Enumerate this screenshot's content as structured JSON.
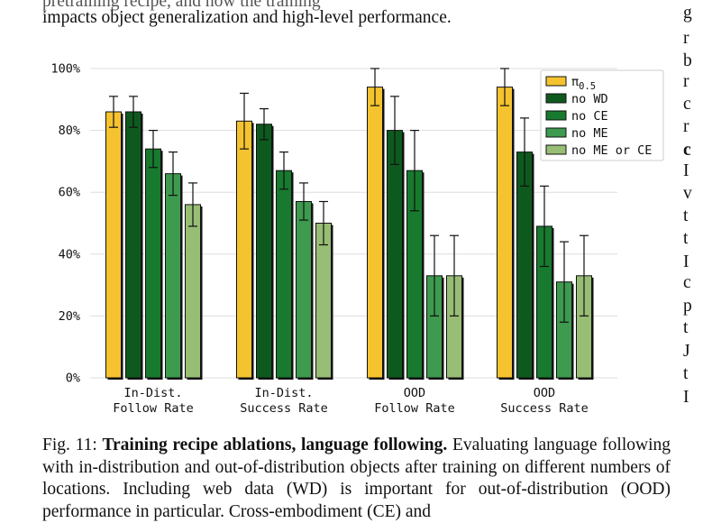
{
  "top_text": {
    "line1_tail": "pretraining recipe, and how the training",
    "line2": "impacts object generalization and high-level performance."
  },
  "right_column": {
    "letters": [
      "g",
      "r",
      "b",
      "r",
      "c",
      "r",
      "c",
      "I",
      "v",
      "t",
      "t",
      "I",
      "c",
      "p",
      "t",
      "J",
      "t",
      "I"
    ]
  },
  "caption": {
    "label": "Fig. 11:",
    "bold_title": "Training recipe ablations, language following.",
    "body": "Evaluating language following with in-distribution and out-of-distribution objects after training on different numbers of locations. Including web data (WD) is important for out-of-distribution (OOD) performance in particular. Cross-embodiment (CE) and"
  },
  "chart_data": {
    "type": "bar",
    "categories": [
      [
        "In-Dist.",
        "Follow Rate"
      ],
      [
        "In-Dist.",
        "Success Rate"
      ],
      [
        "OOD",
        "Follow Rate"
      ],
      [
        "OOD",
        "Success Rate"
      ]
    ],
    "ylim": [
      0,
      100
    ],
    "yticks": [
      "0%",
      "20%",
      "40%",
      "60%",
      "80%",
      "100%"
    ],
    "ytick_values": [
      0,
      20,
      40,
      60,
      80,
      100
    ],
    "grid": true,
    "legend_position": "top-right",
    "series": [
      {
        "name": "π0.5",
        "name_main": "π",
        "name_sub": "0.5",
        "color": "#f5c330",
        "values": [
          86,
          83,
          94,
          94
        ],
        "err_low": [
          81,
          74,
          88,
          88
        ],
        "err_high": [
          91,
          92,
          100,
          100
        ]
      },
      {
        "name": "no WD",
        "color": "#0e5a1e",
        "values": [
          86,
          82,
          80,
          73
        ],
        "err_low": [
          81,
          77,
          69,
          62
        ],
        "err_high": [
          91,
          87,
          91,
          84
        ]
      },
      {
        "name": "no CE",
        "color": "#177a2e",
        "values": [
          74,
          67,
          67,
          49
        ],
        "err_low": [
          68,
          61,
          54,
          36
        ],
        "err_high": [
          80,
          73,
          80,
          62
        ]
      },
      {
        "name": "no ME",
        "color": "#3d9a4e",
        "values": [
          66,
          57,
          33,
          31
        ],
        "err_low": [
          59,
          51,
          20,
          18
        ],
        "err_high": [
          73,
          63,
          46,
          44
        ]
      },
      {
        "name": "no ME or CE",
        "color": "#98bd74",
        "values": [
          56,
          50,
          33,
          33
        ],
        "err_low": [
          49,
          43,
          20,
          20
        ],
        "err_high": [
          63,
          57,
          46,
          46
        ]
      }
    ]
  }
}
